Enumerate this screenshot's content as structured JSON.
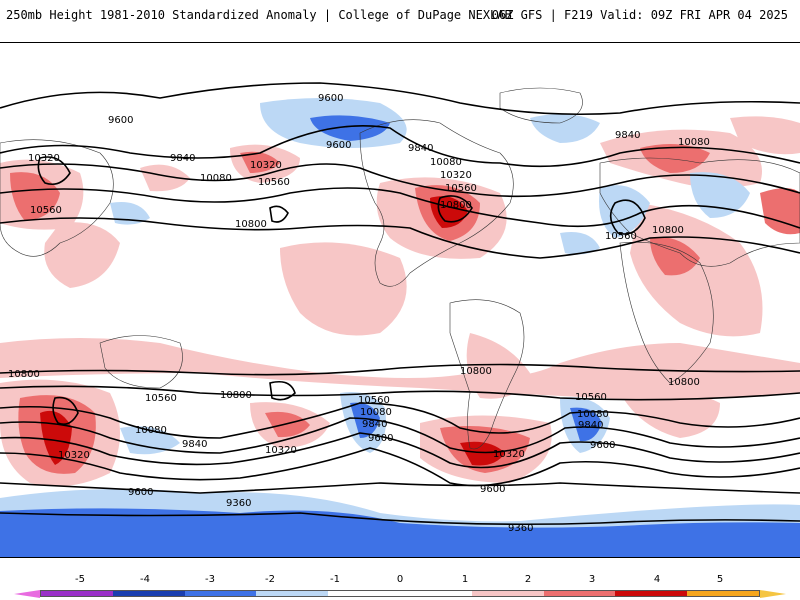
{
  "header": {
    "title": "250mb Height 1981-2010 Standardized Anomaly | College of DuPage NEXLAB",
    "run_info": "06Z GFS | F219 Valid: 09Z FRI APR 04 2025"
  },
  "colorbar": {
    "ticks": [
      "-5",
      "-4",
      "-3",
      "-2",
      "-1",
      "0",
      "1",
      "2",
      "3",
      "4",
      "5"
    ],
    "colors": [
      "#e86be0",
      "#9a30c8",
      "#1a3fb0",
      "#3e72e6",
      "#bcd8f5",
      "#ffffff",
      "#ffffff",
      "#f7c6c6",
      "#ec6f6f",
      "#cc0a0a",
      "#f5a51c",
      "#f5c542"
    ]
  },
  "map": {
    "background_color": "#ffffff",
    "contour_labels": [
      "9600",
      "9600",
      "9600",
      "9840",
      "9840",
      "9840",
      "10080",
      "10080",
      "10080",
      "10320",
      "10320",
      "10320",
      "10560",
      "10560",
      "10560",
      "10560",
      "10800",
      "10800",
      "10800",
      "10800",
      "10560",
      "10800",
      "10560",
      "10800",
      "10560",
      "10800",
      "10080",
      "9840",
      "9600",
      "10320",
      "10080",
      "9840",
      "9600",
      "10320",
      "10320",
      "10080",
      "9840",
      "9600",
      "9600",
      "9360",
      "9360"
    ]
  }
}
